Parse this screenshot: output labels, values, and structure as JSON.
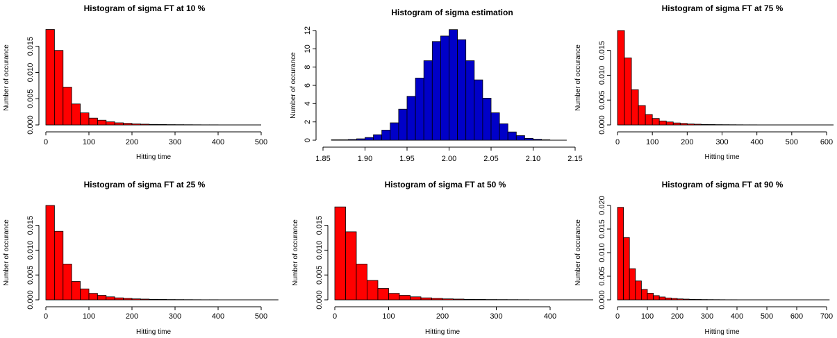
{
  "chart_data": [
    {
      "type": "bar",
      "title": "Histogram of sigma FT at 10 %",
      "xlabel": "Hitting time",
      "ylabel": "Number of occurance",
      "bin_start": 0,
      "bin_width": 20,
      "values": [
        0.0182,
        0.0142,
        0.0072,
        0.004,
        0.0023,
        0.0013,
        0.0009,
        0.0006,
        0.0004,
        0.0003,
        0.0002,
        0.00015,
        0.0001,
        8e-05,
        6e-05,
        5e-05,
        4e-05,
        3e-05,
        2e-05,
        2e-05,
        1e-05,
        1e-05
      ],
      "xlim": [
        0,
        500
      ],
      "ylim": [
        0,
        0.018
      ],
      "xticks": [
        0,
        100,
        200,
        300,
        400,
        500
      ],
      "yticks": [
        0,
        0.005,
        0.01,
        0.015
      ],
      "xtick_labels": [
        "0",
        "100",
        "200",
        "300",
        "400",
        "500"
      ],
      "ytick_labels": [
        "0.000",
        "0.005",
        "0.010",
        "0.015"
      ],
      "color": "#ff0000",
      "baseline_to": 500
    },
    {
      "type": "bar",
      "title": "Histogram of sigma estimation",
      "xlabel": "",
      "ylabel": "Number of occurance",
      "bin_start": 1.86,
      "bin_width": 0.01,
      "values": [
        0.05,
        0.05,
        0.08,
        0.15,
        0.3,
        0.6,
        1.1,
        1.9,
        3.4,
        4.8,
        6.8,
        8.7,
        10.8,
        11.4,
        12.1,
        11.0,
        8.7,
        6.6,
        4.6,
        3.0,
        1.8,
        0.9,
        0.5,
        0.2,
        0.1,
        0.05
      ],
      "xlim": [
        1.85,
        2.15
      ],
      "ylim": [
        0,
        12
      ],
      "xticks": [
        1.85,
        1.9,
        1.95,
        2.0,
        2.05,
        2.1,
        2.15
      ],
      "yticks": [
        0,
        2,
        4,
        6,
        8,
        10,
        12
      ],
      "xtick_labels": [
        "1.85",
        "1.90",
        "1.95",
        "2.00",
        "2.05",
        "2.10",
        "2.15"
      ],
      "ytick_labels": [
        "0",
        "2",
        "4",
        "6",
        "8",
        "10",
        "12"
      ],
      "color": "#0000c8",
      "baseline_to": 2.14
    },
    {
      "type": "bar",
      "title": "Histogram of sigma FT at 75 %",
      "xlabel": "Hitting time",
      "ylabel": "Number of occurance",
      "bin_start": 0,
      "bin_width": 20,
      "values": [
        0.019,
        0.0135,
        0.0071,
        0.0039,
        0.0021,
        0.0013,
        0.0008,
        0.0006,
        0.0004,
        0.0003,
        0.0002,
        0.00015,
        0.0001,
        8e-05,
        6e-05,
        5e-05,
        4e-05,
        3e-05,
        2e-05,
        2e-05
      ],
      "xlim": [
        0,
        600
      ],
      "ylim": [
        0,
        0.019
      ],
      "xticks": [
        0,
        100,
        200,
        300,
        400,
        500,
        600
      ],
      "yticks": [
        0,
        0.005,
        0.01,
        0.015
      ],
      "xtick_labels": [
        "0",
        "100",
        "200",
        "300",
        "400",
        "500",
        "600"
      ],
      "ytick_labels": [
        "0.000",
        "0.005",
        "0.010",
        "0.015"
      ],
      "color": "#ff0000",
      "baseline_to": 620
    },
    {
      "type": "bar",
      "title": "Histogram of sigma FT at 25 %",
      "xlabel": "Hitting time",
      "ylabel": "Number of occurance",
      "bin_start": 0,
      "bin_width": 20,
      "values": [
        0.019,
        0.0138,
        0.0072,
        0.0037,
        0.0022,
        0.0013,
        0.0009,
        0.0006,
        0.0004,
        0.0003,
        0.0002,
        0.00015,
        0.0001,
        8e-05,
        6e-05,
        5e-05,
        4e-05,
        3e-05,
        2e-05,
        2e-05
      ],
      "xlim": [
        0,
        500
      ],
      "ylim": [
        0,
        0.019
      ],
      "xticks": [
        0,
        100,
        200,
        300,
        400,
        500
      ],
      "yticks": [
        0,
        0.005,
        0.01,
        0.015
      ],
      "xtick_labels": [
        "0",
        "100",
        "200",
        "300",
        "400",
        "500"
      ],
      "ytick_labels": [
        "0.000",
        "0.005",
        "0.010",
        "0.015"
      ],
      "color": "#ff0000",
      "baseline_to": 540
    },
    {
      "type": "bar",
      "title": "Histogram of sigma FT at 50 %",
      "xlabel": "Hitting time",
      "ylabel": "Number of occurance",
      "bin_start": 0,
      "bin_width": 20,
      "values": [
        0.0187,
        0.0137,
        0.0072,
        0.0039,
        0.0023,
        0.0013,
        0.0009,
        0.0006,
        0.0004,
        0.0003,
        0.0002,
        0.00015,
        0.0001,
        8e-05,
        6e-05,
        5e-05,
        4e-05,
        3e-05,
        2e-05
      ],
      "xlim": [
        0,
        400
      ],
      "ylim": [
        0,
        0.019
      ],
      "xticks": [
        0,
        100,
        200,
        300,
        400
      ],
      "yticks": [
        0,
        0.005,
        0.01,
        0.015
      ],
      "xtick_labels": [
        "0",
        "100",
        "200",
        "300",
        "400"
      ],
      "ytick_labels": [
        "0.000",
        "0.005",
        "0.010",
        "0.015"
      ],
      "color": "#ff0000",
      "baseline_to": 480
    },
    {
      "type": "bar",
      "title": "Histogram of sigma FT at 90 %",
      "xlabel": "Hitting time",
      "ylabel": "Number of occurance",
      "bin_start": 0,
      "bin_width": 20,
      "values": [
        0.0196,
        0.0132,
        0.0066,
        0.004,
        0.0022,
        0.0014,
        0.0009,
        0.0006,
        0.0004,
        0.0003,
        0.0002,
        0.00015,
        0.0001,
        8e-05,
        6e-05,
        5e-05,
        4e-05,
        3e-05,
        2e-05,
        2e-05
      ],
      "xlim": [
        0,
        700
      ],
      "ylim": [
        0,
        0.02
      ],
      "xticks": [
        0,
        100,
        200,
        300,
        400,
        500,
        600,
        700
      ],
      "yticks": [
        0,
        0.005,
        0.01,
        0.015,
        0.02
      ],
      "xtick_labels": [
        "0",
        "100",
        "200",
        "300",
        "400",
        "500",
        "600",
        "700"
      ],
      "ytick_labels": [
        "0.000",
        "0.005",
        "0.010",
        "0.015",
        "0.020"
      ],
      "color": "#ff0000",
      "baseline_to": 710
    }
  ]
}
